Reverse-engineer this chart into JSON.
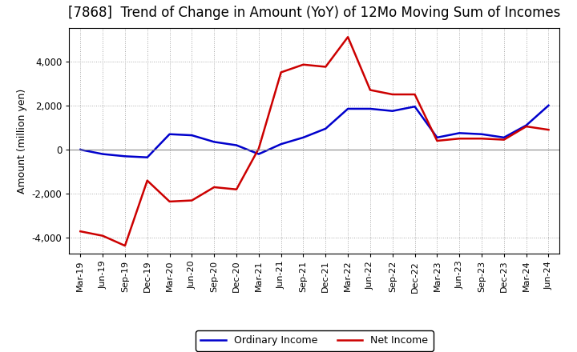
{
  "title": "[7868]  Trend of Change in Amount (YoY) of 12Mo Moving Sum of Incomes",
  "ylabel": "Amount (million yen)",
  "x_labels": [
    "Mar-19",
    "Jun-19",
    "Sep-19",
    "Dec-19",
    "Mar-20",
    "Jun-20",
    "Sep-20",
    "Dec-20",
    "Mar-21",
    "Jun-21",
    "Sep-21",
    "Dec-21",
    "Mar-22",
    "Jun-22",
    "Sep-22",
    "Dec-22",
    "Mar-23",
    "Jun-23",
    "Sep-23",
    "Dec-23",
    "Mar-24",
    "Jun-24"
  ],
  "ordinary_income": [
    0,
    -200,
    -300,
    -350,
    700,
    650,
    350,
    200,
    -200,
    250,
    550,
    950,
    1850,
    1850,
    1750,
    1950,
    550,
    750,
    700,
    550,
    1100,
    2000
  ],
  "net_income": [
    -3700,
    -3900,
    -4350,
    -1400,
    -2350,
    -2300,
    -1700,
    -1800,
    50,
    3500,
    3850,
    3750,
    5100,
    2700,
    2500,
    2500,
    400,
    500,
    500,
    450,
    1050,
    900
  ],
  "ordinary_income_color": "#0000cc",
  "net_income_color": "#cc0000",
  "background_color": "#FFFFFF",
  "plot_bg_color": "#FFFFFF",
  "ylim": [
    -4700,
    5500
  ],
  "yticks": [
    -4000,
    -2000,
    0,
    2000,
    4000
  ],
  "legend_labels": [
    "Ordinary Income",
    "Net Income"
  ],
  "line_width": 1.8,
  "title_fontsize": 12,
  "axis_label_fontsize": 9,
  "tick_fontsize": 8.5,
  "xtick_fontsize": 8
}
